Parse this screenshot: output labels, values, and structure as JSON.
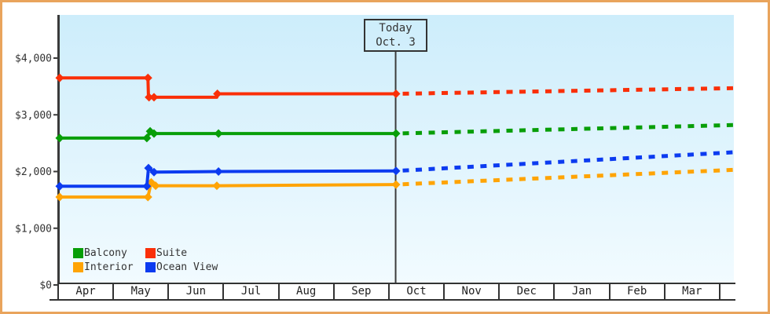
{
  "window": {
    "border_color": "#e9a45c",
    "background": "#ffffff"
  },
  "chart_data": {
    "type": "line",
    "title": "",
    "description": "Cruise cabin price history (solid) and forecast (dashed) by cabin category",
    "grid": false,
    "plot_bg_top": "#cdedfb",
    "plot_bg_bottom": "#f2fbff",
    "axis_color": "#3a3a3a",
    "today_line_color": "#3c3c3c",
    "x_axis": {
      "months": [
        "Apr",
        "May",
        "Jun",
        "Jul",
        "Aug",
        "Sep",
        "Oct",
        "Nov",
        "Dec",
        "Jan",
        "Feb",
        "Mar"
      ],
      "range_months": [
        0,
        12.23
      ]
    },
    "y_axis": {
      "ylim": [
        0,
        4400
      ],
      "ticks": [
        {
          "value": 0,
          "label": "$0"
        },
        {
          "value": 1000,
          "label": "$1,000"
        },
        {
          "value": 2000,
          "label": "$2,000"
        },
        {
          "value": 3000,
          "label": "$3,000"
        },
        {
          "value": 4000,
          "label": "$4,000"
        }
      ]
    },
    "today": {
      "line1": "Today",
      "line2": "Oct. 3",
      "month_position": 6.1
    },
    "series": [
      {
        "name": "Interior",
        "color": "#ffa405",
        "history": [
          [
            0,
            1550
          ],
          [
            1.6,
            1550
          ],
          [
            1.66,
            1810
          ],
          [
            1.74,
            1750
          ],
          [
            2.85,
            1750
          ],
          [
            6.1,
            1770
          ]
        ],
        "markers": [
          [
            0,
            1550
          ],
          [
            1.6,
            1550
          ],
          [
            1.66,
            1810
          ],
          [
            1.74,
            1750
          ],
          [
            2.85,
            1750
          ],
          [
            6.1,
            1770
          ]
        ],
        "forecast": [
          [
            6.1,
            1770
          ],
          [
            12.23,
            2030
          ]
        ]
      },
      {
        "name": "Ocean View",
        "color": "#0c3bf0",
        "history": [
          [
            0,
            1740
          ],
          [
            1.58,
            1740
          ],
          [
            1.61,
            2060
          ],
          [
            1.71,
            1990
          ],
          [
            2.88,
            2000
          ],
          [
            6.1,
            2010
          ]
        ],
        "markers": [
          [
            0,
            1740
          ],
          [
            1.58,
            1740
          ],
          [
            1.61,
            2060
          ],
          [
            1.71,
            1990
          ],
          [
            2.88,
            2000
          ],
          [
            6.1,
            2010
          ]
        ],
        "forecast": [
          [
            6.1,
            2010
          ],
          [
            12.23,
            2340
          ]
        ]
      },
      {
        "name": "Balcony",
        "color": "#089e08",
        "history": [
          [
            0,
            2590
          ],
          [
            1.58,
            2590
          ],
          [
            1.64,
            2710
          ],
          [
            1.71,
            2670
          ],
          [
            2.88,
            2670
          ],
          [
            6.1,
            2670
          ]
        ],
        "markers": [
          [
            0,
            2590
          ],
          [
            1.58,
            2590
          ],
          [
            1.64,
            2710
          ],
          [
            1.71,
            2670
          ],
          [
            2.88,
            2670
          ],
          [
            6.1,
            2670
          ]
        ],
        "forecast": [
          [
            6.1,
            2670
          ],
          [
            12.23,
            2820
          ]
        ]
      },
      {
        "name": "Suite",
        "color": "#fa2f08",
        "history": [
          [
            0,
            3650
          ],
          [
            1.6,
            3650
          ],
          [
            1.61,
            3310
          ],
          [
            1.71,
            3310
          ],
          [
            2.85,
            3310
          ],
          [
            2.86,
            3370
          ],
          [
            6.1,
            3370
          ]
        ],
        "markers": [
          [
            0,
            3650
          ],
          [
            1.6,
            3650
          ],
          [
            1.62,
            3310
          ],
          [
            1.71,
            3310
          ],
          [
            2.86,
            3370
          ],
          [
            6.1,
            3370
          ]
        ],
        "forecast": [
          [
            6.1,
            3370
          ],
          [
            12.23,
            3470
          ]
        ]
      }
    ],
    "legend": {
      "position": "bottom-left-inside",
      "items": [
        {
          "label": "Balcony",
          "color": "#089e08"
        },
        {
          "label": "Suite",
          "color": "#fa2f08"
        },
        {
          "label": "Interior",
          "color": "#ffa405"
        },
        {
          "label": "Ocean View",
          "color": "#0c3bf0"
        }
      ]
    }
  }
}
